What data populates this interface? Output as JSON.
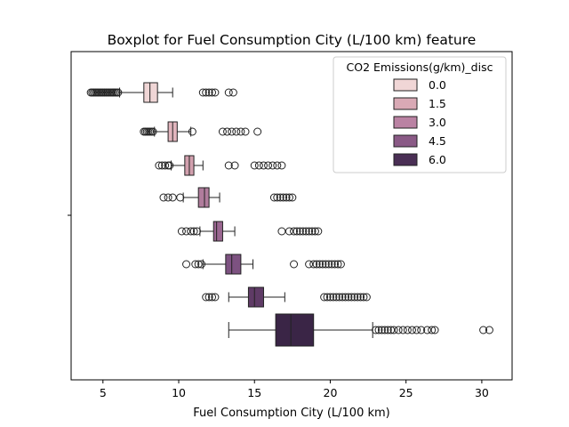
{
  "chart_data": {
    "type": "boxplot",
    "title": "Boxplot for Fuel Consumption City (L/100 km) feature",
    "xlabel": "Fuel Consumption City (L/100 km)",
    "ylabel": "",
    "xlim": [
      2.9,
      32.0
    ],
    "xticks": [
      5,
      10,
      15,
      20,
      25,
      30
    ],
    "orientation": "horizontal",
    "legend": {
      "title": "CO2 Emissions(g/km)_disc",
      "placement": "top-right",
      "entries": [
        "0.0",
        "1.5",
        "3.0",
        "4.5",
        "6.0"
      ]
    },
    "series": [
      {
        "hue": 0.0,
        "color": "#f0d6d6",
        "q1": 7.7,
        "median": 8.1,
        "q3": 8.6,
        "whisker_low": 6.1,
        "whisker_high": 9.6,
        "outliers": [
          4.2,
          4.3,
          4.4,
          4.5,
          4.6,
          4.7,
          4.8,
          4.9,
          5.0,
          5.1,
          5.2,
          5.3,
          5.4,
          5.5,
          5.6,
          5.7,
          5.8,
          5.9,
          6.0,
          11.6,
          11.8,
          12.0,
          12.2,
          12.4,
          13.3,
          13.6
        ]
      },
      {
        "hue": 0.75,
        "color": "#e2b5bd",
        "q1": 9.3,
        "median": 9.6,
        "q3": 9.9,
        "whisker_low": 8.4,
        "whisker_high": 10.8,
        "outliers": [
          7.7,
          7.8,
          7.9,
          8.0,
          8.1,
          8.2,
          8.3,
          10.9,
          12.9,
          13.2,
          13.5,
          13.8,
          14.1,
          14.4,
          15.2
        ]
      },
      {
        "hue": 1.5,
        "color": "#d2a0ae",
        "q1": 10.4,
        "median": 10.7,
        "q3": 11.0,
        "whisker_low": 9.5,
        "whisker_high": 11.6,
        "outliers": [
          8.7,
          8.9,
          9.1,
          9.3,
          9.4,
          13.3,
          13.7,
          15.0,
          15.3,
          15.6,
          15.9,
          16.2,
          16.5,
          16.8
        ]
      },
      {
        "hue": 2.25,
        "color": "#b07c9c",
        "q1": 11.3,
        "median": 11.7,
        "q3": 12.0,
        "whisker_low": 10.3,
        "whisker_high": 12.7,
        "outliers": [
          9.0,
          9.3,
          9.6,
          10.1,
          16.3,
          16.5,
          16.7,
          16.9,
          17.1,
          17.3,
          17.5
        ]
      },
      {
        "hue": 3.0,
        "color": "#9a6690",
        "q1": 12.3,
        "median": 12.5,
        "q3": 12.9,
        "whisker_low": 11.4,
        "whisker_high": 13.7,
        "outliers": [
          10.2,
          10.5,
          10.8,
          11.0,
          11.2,
          16.8,
          17.3,
          17.6,
          17.8,
          18.0,
          18.2,
          18.4,
          18.6,
          18.8,
          19.0,
          19.2
        ]
      },
      {
        "hue": 3.75,
        "color": "#7d5281",
        "q1": 13.1,
        "median": 13.5,
        "q3": 14.1,
        "whisker_low": 11.6,
        "whisker_high": 14.9,
        "outliers": [
          10.5,
          11.1,
          11.3,
          11.5,
          17.6,
          18.6,
          18.9,
          19.1,
          19.3,
          19.5,
          19.7,
          19.9,
          20.1,
          20.3,
          20.5,
          20.7
        ]
      },
      {
        "hue": 4.5,
        "color": "#5f3b66",
        "q1": 14.6,
        "median": 15.0,
        "q3": 15.6,
        "whisker_low": 13.3,
        "whisker_high": 17.0,
        "outliers": [
          11.8,
          12.0,
          12.2,
          12.4,
          19.6,
          19.8,
          20.0,
          20.2,
          20.4,
          20.6,
          20.8,
          21.0,
          21.2,
          21.4,
          21.6,
          21.8,
          22.0,
          22.2,
          22.4
        ]
      },
      {
        "hue": 6.0,
        "color": "#3a2546",
        "q1": 16.4,
        "median": 17.4,
        "q3": 18.9,
        "whisker_low": 13.3,
        "whisker_high": 22.8,
        "outliers": [
          23.0,
          23.2,
          23.4,
          23.6,
          23.8,
          24.0,
          24.2,
          24.5,
          24.8,
          25.1,
          25.4,
          25.7,
          26.0,
          26.4,
          26.7,
          26.9,
          30.1,
          30.5
        ]
      }
    ],
    "legend_colors": [
      "#f0d6d6",
      "#d9a9b5",
      "#ba82a3",
      "#8a5a86",
      "#4a2f55"
    ]
  }
}
